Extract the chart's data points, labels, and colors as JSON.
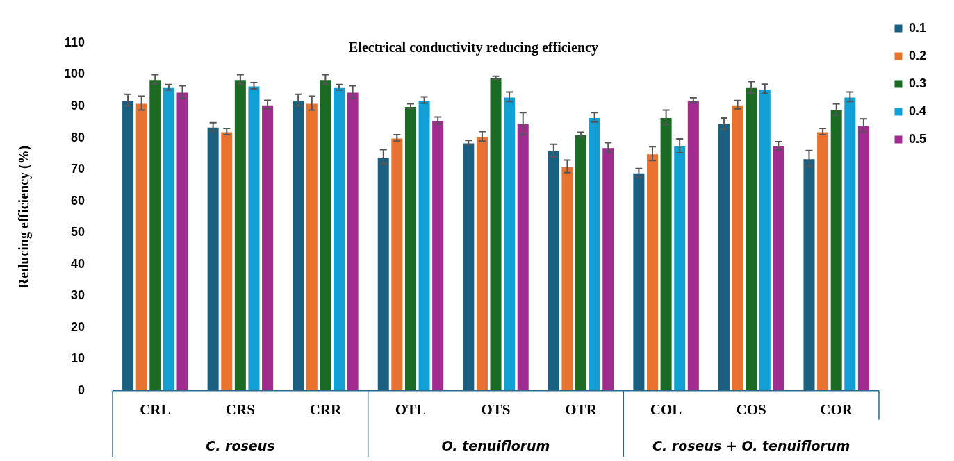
{
  "chart_data": {
    "type": "bar",
    "title": "Electrical conductivity reducing efficiency",
    "ylabel": "Reducing efficiency (%)",
    "categories": [
      "CRL",
      "CRS",
      "CRR",
      "OTL",
      "OTS",
      "OTR",
      "COL",
      "COS",
      "COR"
    ],
    "series": [
      {
        "name": "0.1",
        "color": "#1a5f80",
        "values": [
          92,
          83.5,
          92,
          74,
          78.5,
          76,
          69,
          84.5,
          73.5
        ],
        "errors": [
          1.8,
          1.3,
          1.8,
          2.3,
          0.7,
          2,
          1.3,
          1.8,
          2.5
        ]
      },
      {
        "name": "0.2",
        "color": "#e87331",
        "values": [
          91,
          82,
          91,
          80,
          80.5,
          71,
          75,
          90.5,
          82
        ],
        "errors": [
          2.2,
          1,
          2.2,
          1,
          1.5,
          2,
          2.2,
          1.3,
          1
        ]
      },
      {
        "name": "0.3",
        "color": "#1b6b24",
        "values": [
          98.5,
          98.5,
          98.5,
          90,
          99,
          81,
          86.5,
          96,
          89
        ],
        "errors": [
          1.5,
          1.5,
          1.5,
          0.8,
          0.5,
          0.8,
          2.3,
          1.8,
          1.8
        ]
      },
      {
        "name": "0.4",
        "color": "#129fd6",
        "values": [
          96,
          96.5,
          96,
          92,
          93,
          86.5,
          77.5,
          95.5,
          93
        ],
        "errors": [
          0.9,
          1,
          0.9,
          1,
          1.5,
          1.5,
          2.2,
          1.5,
          1.5
        ]
      },
      {
        "name": "0.5",
        "color": "#a02c90",
        "values": [
          94.5,
          90.5,
          94.5,
          85.5,
          84.5,
          77,
          92,
          77.5,
          84
        ],
        "errors": [
          2,
          1.4,
          2,
          1.1,
          3.5,
          1.5,
          0.7,
          1.3,
          2
        ]
      }
    ],
    "ylim": [
      0,
      110
    ],
    "yticks": [
      0,
      10,
      20,
      30,
      40,
      50,
      60,
      70,
      80,
      90,
      100,
      110
    ],
    "grid": false,
    "legend": "top right",
    "annotations": [
      "C. roseus",
      "O. tenuiflorum",
      "C. roseus + O. tenuiflorum"
    ]
  }
}
